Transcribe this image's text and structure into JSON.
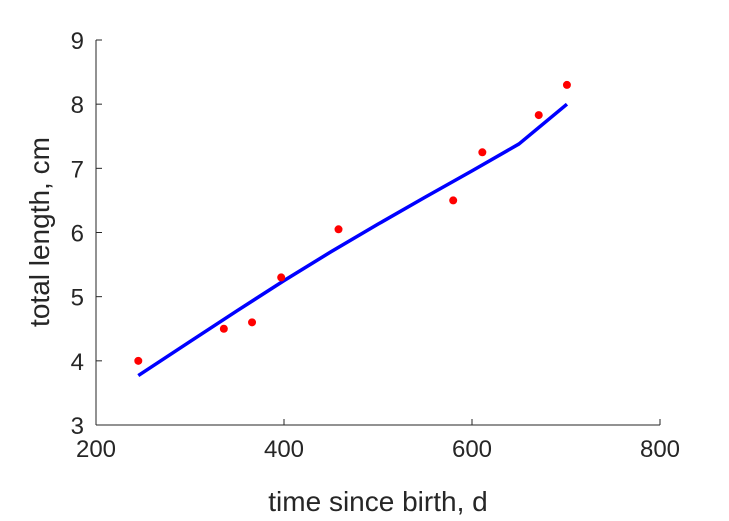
{
  "chart_data": {
    "type": "scatter",
    "title": "",
    "xlabel": "time since birth, d",
    "ylabel": "total length, cm",
    "xlim": [
      200,
      800
    ],
    "ylim": [
      3,
      9
    ],
    "xticks": [
      200,
      400,
      600,
      800
    ],
    "yticks": [
      3,
      4,
      5,
      6,
      7,
      8,
      9
    ],
    "grid": false,
    "legend": "none",
    "series": [
      {
        "kind": "points",
        "color": "#ff0000",
        "x": [
          245,
          336,
          366,
          397,
          458,
          580,
          611,
          671,
          701
        ],
        "y": [
          4.0,
          4.5,
          4.6,
          5.3,
          6.05,
          6.5,
          7.25,
          7.83,
          8.3
        ]
      },
      {
        "kind": "line",
        "color": "#0000ff",
        "x": [
          245,
          300,
          350,
          400,
          450,
          500,
          550,
          600,
          650,
          701
        ],
        "y": [
          3.77,
          4.3,
          4.78,
          5.25,
          5.7,
          6.13,
          6.55,
          6.96,
          7.38,
          8.0
        ]
      }
    ]
  }
}
